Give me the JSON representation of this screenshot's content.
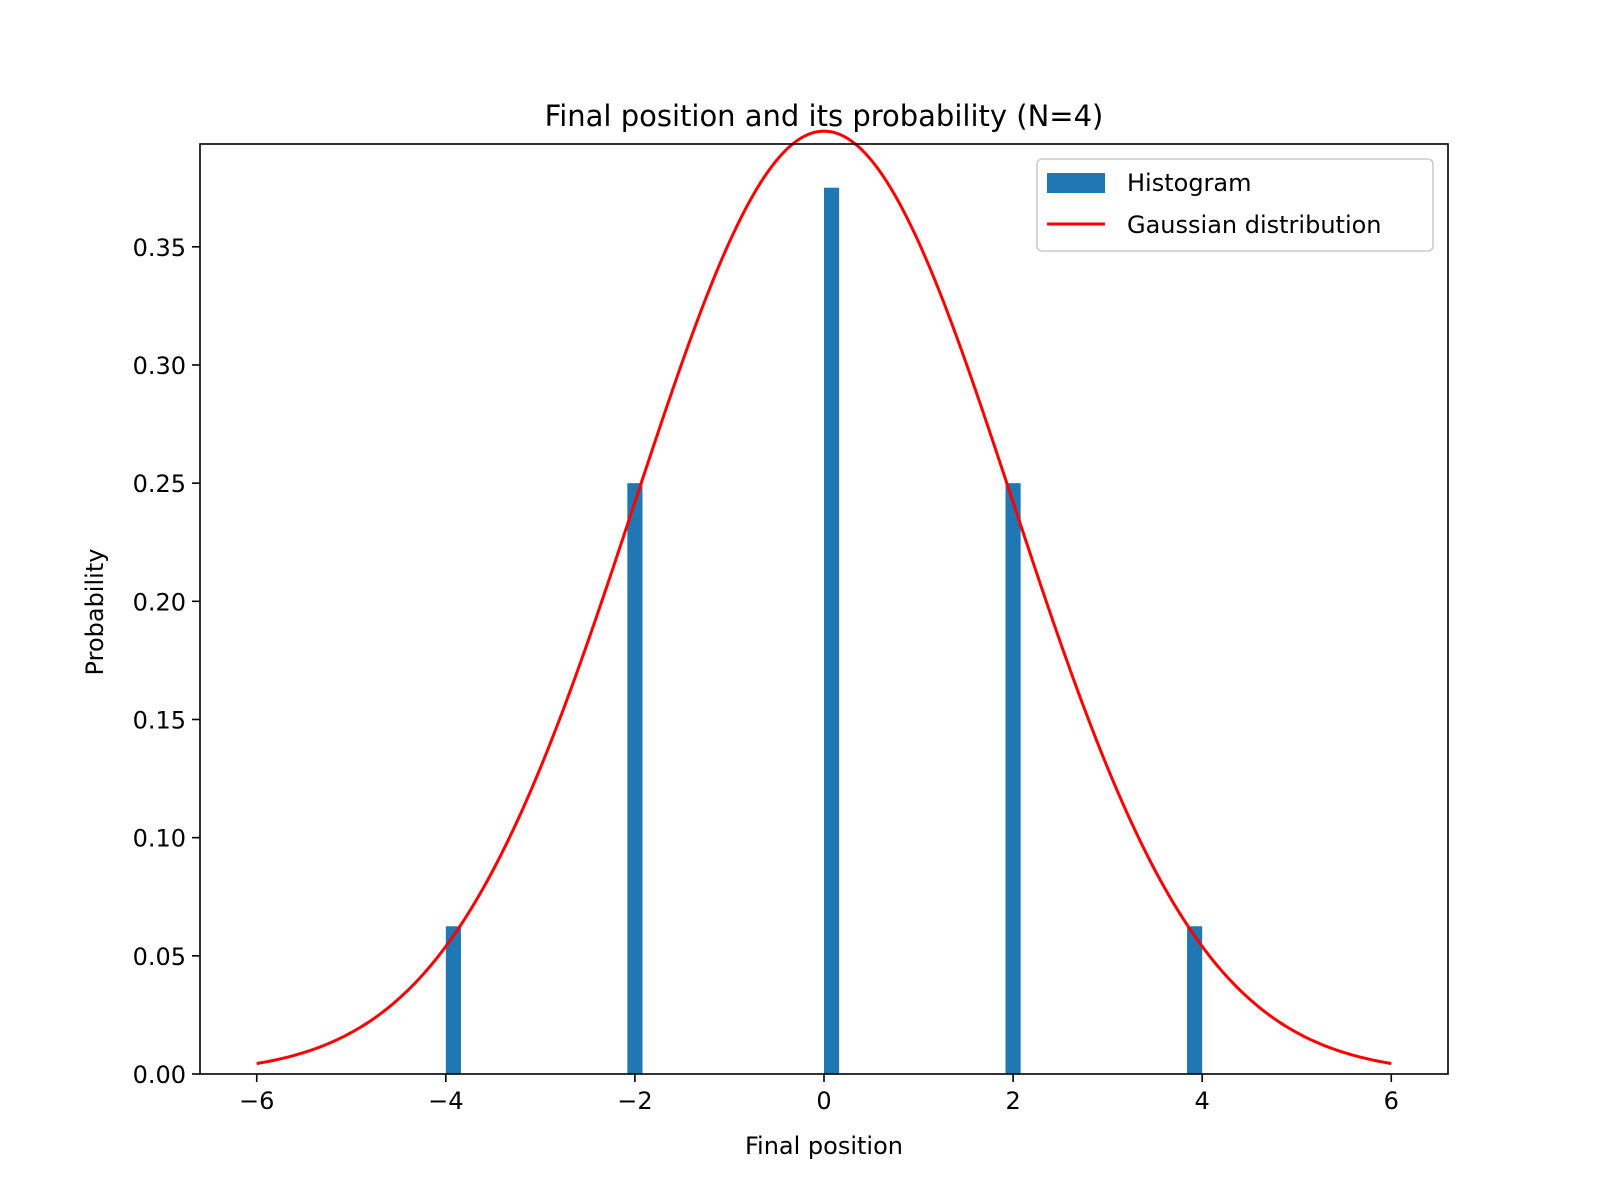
{
  "chart_data": {
    "type": "bar",
    "title": "Final position and its probability (N=4)",
    "xlabel": "Final position",
    "ylabel": "Probability",
    "xlim": [
      -6.6,
      6.6
    ],
    "ylim": [
      0,
      0.3935
    ],
    "xticks": [
      -6,
      -4,
      -2,
      0,
      2,
      4,
      6
    ],
    "xtick_labels": [
      "−6",
      "−4",
      "−2",
      "0",
      "2",
      "4",
      "6"
    ],
    "yticks": [
      0,
      0.05,
      0.1,
      0.15,
      0.2,
      0.25,
      0.3,
      0.35
    ],
    "ytick_labels": [
      "0.00",
      "0.05",
      "0.10",
      "0.15",
      "0.20",
      "0.25",
      "0.30",
      "0.35"
    ],
    "grid": false,
    "legend_position": "top-right",
    "series": [
      {
        "name": "Histogram",
        "kind": "bar",
        "color": "#1f77b4",
        "bins": [
          {
            "x0": -4.0,
            "x1": -3.84,
            "value": 0.0625
          },
          {
            "x0": -2.08,
            "x1": -1.92,
            "value": 0.25
          },
          {
            "x0": -0.0,
            "x1": 0.16,
            "value": 0.375
          },
          {
            "x0": 1.92,
            "x1": 2.08,
            "value": 0.25
          },
          {
            "x0": 3.84,
            "x1": 4.0,
            "value": 0.0625
          }
        ]
      },
      {
        "name": "Gaussian distribution",
        "kind": "line",
        "color": "#ff0000",
        "mean": 0,
        "sigma": 2,
        "x_range": [
          -6,
          6
        ]
      }
    ]
  }
}
